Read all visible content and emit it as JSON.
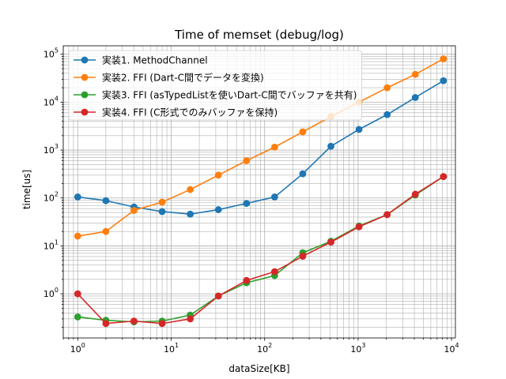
{
  "chart_data": {
    "type": "line",
    "title": "Time of memset (debug/log)",
    "xlabel": "dataSize[KB]",
    "ylabel": "time[us]",
    "xscale": "log",
    "yscale": "log",
    "xlim": [
      0.7,
      11000
    ],
    "ylim": [
      0.12,
      150000
    ],
    "grid": "on (major and minor)",
    "legend_position": "top-left",
    "x": [
      1,
      2,
      4,
      8,
      16,
      32,
      64,
      128,
      256,
      512,
      1024,
      2048,
      4096,
      8192
    ],
    "x_ticks": [
      {
        "value": 1,
        "base": "10",
        "exp": "0"
      },
      {
        "value": 10,
        "base": "10",
        "exp": "1"
      },
      {
        "value": 100,
        "base": "10",
        "exp": "2"
      },
      {
        "value": 1000,
        "base": "10",
        "exp": "3"
      },
      {
        "value": 10000,
        "base": "10",
        "exp": "4"
      }
    ],
    "y_ticks": [
      {
        "value": 1,
        "base": "10",
        "exp": "0"
      },
      {
        "value": 10,
        "base": "10",
        "exp": "1"
      },
      {
        "value": 100,
        "base": "10",
        "exp": "2"
      },
      {
        "value": 1000,
        "base": "10",
        "exp": "3"
      },
      {
        "value": 10000,
        "base": "10",
        "exp": "4"
      },
      {
        "value": 100000,
        "base": "10",
        "exp": "5"
      }
    ],
    "series": [
      {
        "name": "実装1. MethodChannel",
        "color": "#1f77b4",
        "values": [
          105,
          88,
          65,
          52,
          46,
          57,
          77,
          105,
          320,
          1200,
          2700,
          5500,
          12500,
          28000
        ]
      },
      {
        "name": "実装2. FFI (Dart-C間でデータを変換)",
        "color": "#ff7f0e",
        "values": [
          16,
          20,
          55,
          82,
          150,
          300,
          600,
          1150,
          2400,
          5000,
          10000,
          20000,
          38000,
          80000
        ]
      },
      {
        "name": "実装3. FFI (asTypedListを使いDart-C間でバッファを共有)",
        "color": "#2ca02c",
        "values": [
          0.33,
          0.28,
          0.26,
          0.27,
          0.36,
          0.9,
          1.7,
          2.4,
          7.2,
          12.5,
          26,
          45,
          115,
          280
        ]
      },
      {
        "name": "実装4. FFI (C形式でのみバッファを保持)",
        "color": "#d62728",
        "values": [
          1.0,
          0.24,
          0.27,
          0.24,
          0.3,
          0.9,
          1.9,
          2.9,
          6.1,
          12.0,
          25,
          45,
          120,
          280
        ]
      }
    ]
  }
}
